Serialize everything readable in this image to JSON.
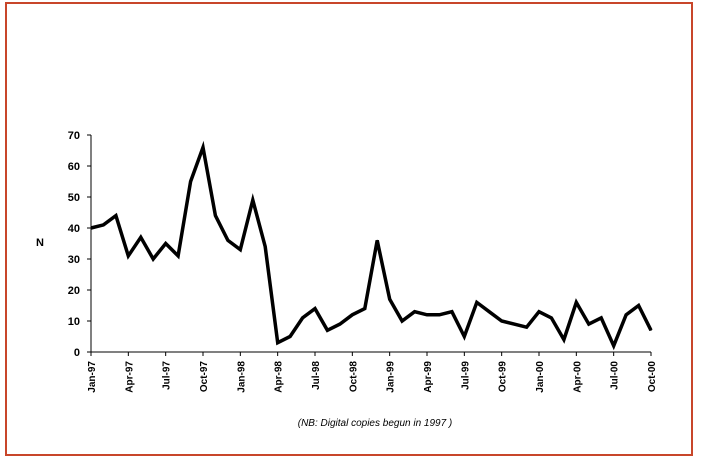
{
  "chart_data": {
    "type": "line",
    "title": "",
    "xlabel": "",
    "ylabel": "N",
    "ylim": [
      0,
      70
    ],
    "y_ticks": [
      0,
      10,
      20,
      30,
      40,
      50,
      60,
      70
    ],
    "x_tick_labels": [
      "Jan-97",
      "Apr-97",
      "Jul-97",
      "Oct-97",
      "Jan-98",
      "Apr-98",
      "Jul-98",
      "Oct-98",
      "Jan-99",
      "Apr-99",
      "Jul-99",
      "Oct-99",
      "Jan-00",
      "Apr-00",
      "Jul-00",
      "Oct-00"
    ],
    "x_months": [
      "Jan-97",
      "Feb-97",
      "Mar-97",
      "Apr-97",
      "May-97",
      "Jun-97",
      "Jul-97",
      "Aug-97",
      "Sep-97",
      "Oct-97",
      "Nov-97",
      "Dec-97",
      "Jan-98",
      "Feb-98",
      "Mar-98",
      "Apr-98",
      "May-98",
      "Jun-98",
      "Jul-98",
      "Aug-98",
      "Sep-98",
      "Oct-98",
      "Nov-98",
      "Dec-98",
      "Jan-99",
      "Feb-99",
      "Mar-99",
      "Apr-99",
      "May-99",
      "Jun-99",
      "Jul-99",
      "Aug-99",
      "Sep-99",
      "Oct-99",
      "Nov-99",
      "Dec-99",
      "Jan-00",
      "Feb-00",
      "Mar-00",
      "Apr-00",
      "May-00",
      "Jun-00",
      "Jul-00",
      "Aug-00",
      "Sep-00",
      "Oct-00"
    ],
    "series": [
      {
        "values": [
          40,
          41,
          44,
          31,
          37,
          30,
          35,
          31,
          55,
          66,
          44,
          36,
          33,
          49,
          34,
          3,
          5,
          11,
          14,
          7,
          9,
          12,
          14,
          36,
          17,
          10,
          13,
          12,
          12,
          13,
          5,
          16,
          13,
          10,
          9,
          8,
          13,
          11,
          4,
          16,
          9,
          11,
          2,
          12,
          15,
          7
        ],
        "color": "#000000"
      }
    ],
    "grid": false,
    "annotation": "(NB: Digital copies begun in 1997 )"
  },
  "colors": {
    "frame_border": "#c8462a",
    "line": "#000000",
    "background": "#ffffff"
  }
}
